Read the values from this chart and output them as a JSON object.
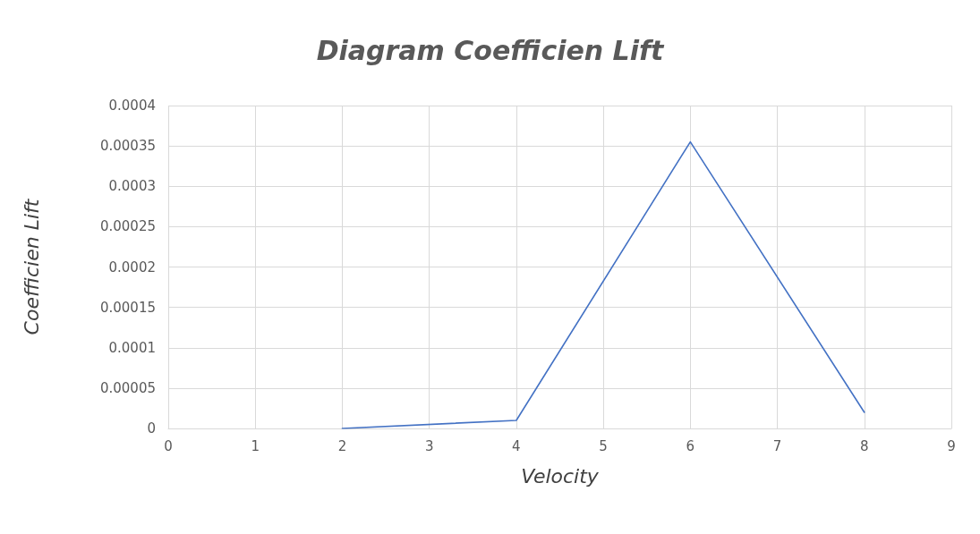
{
  "chart_data": {
    "type": "line",
    "title": "Diagram Coefficien Lift",
    "xlabel": "Velocity",
    "ylabel": "Coefficien Lift",
    "x": [
      2,
      4,
      6,
      8
    ],
    "series": [
      {
        "color": "#4472c4",
        "values": [
          0,
          1e-05,
          0.000355,
          2e-05
        ]
      }
    ],
    "xlim": [
      0,
      9
    ],
    "xticks": [
      0,
      1,
      2,
      3,
      4,
      5,
      6,
      7,
      8,
      9
    ],
    "ylim": [
      0,
      0.0004
    ],
    "yticks": [
      0,
      {
        "value": 5e-05,
        "label": "0.00005"
      },
      0.0001,
      0.00015,
      0.0002,
      0.00025,
      0.0003,
      0.00035,
      0.0004
    ],
    "grid": true,
    "marker": "none",
    "line_style": "solid"
  }
}
